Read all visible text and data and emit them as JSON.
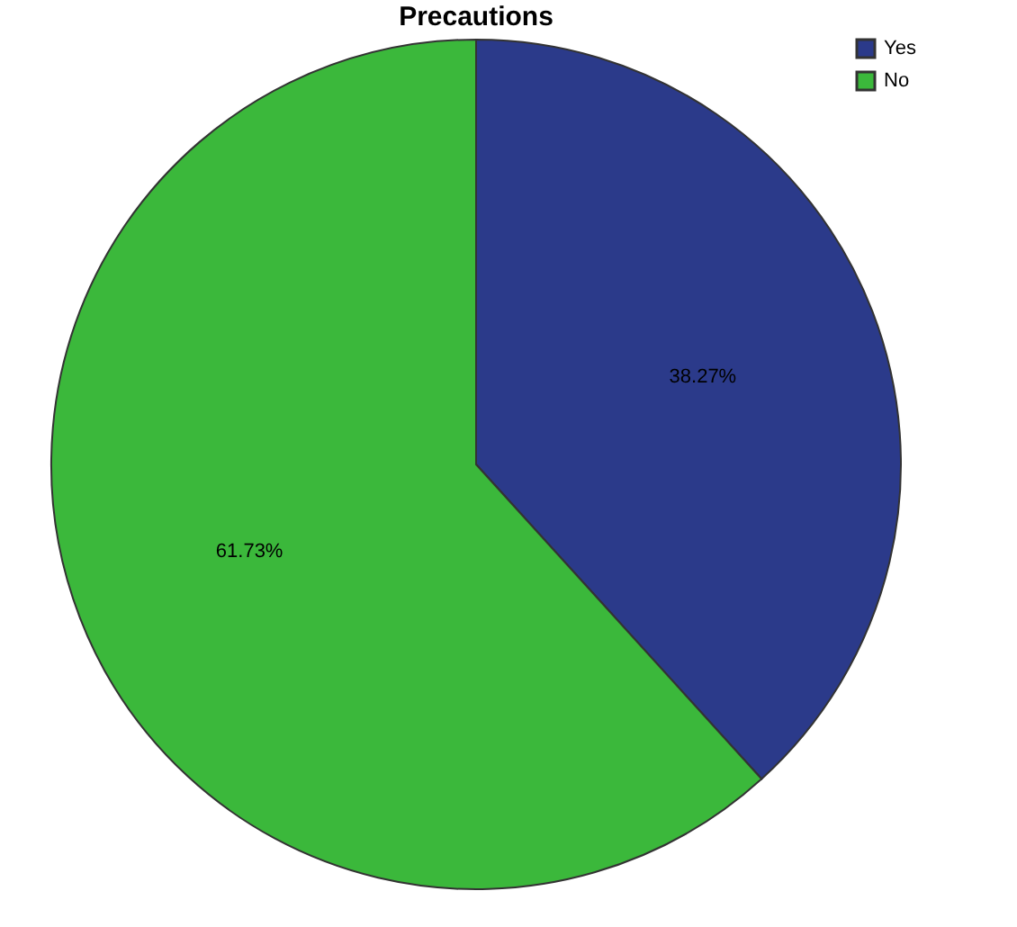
{
  "chart_data": {
    "type": "pie",
    "title": "Precautions",
    "categories": [
      "Yes",
      "No"
    ],
    "values": [
      38.27,
      61.73
    ],
    "colors": [
      "#2b3a8a",
      "#3bb83b"
    ],
    "value_labels": [
      "38.27%",
      "61.73%"
    ],
    "legend": "top right"
  }
}
